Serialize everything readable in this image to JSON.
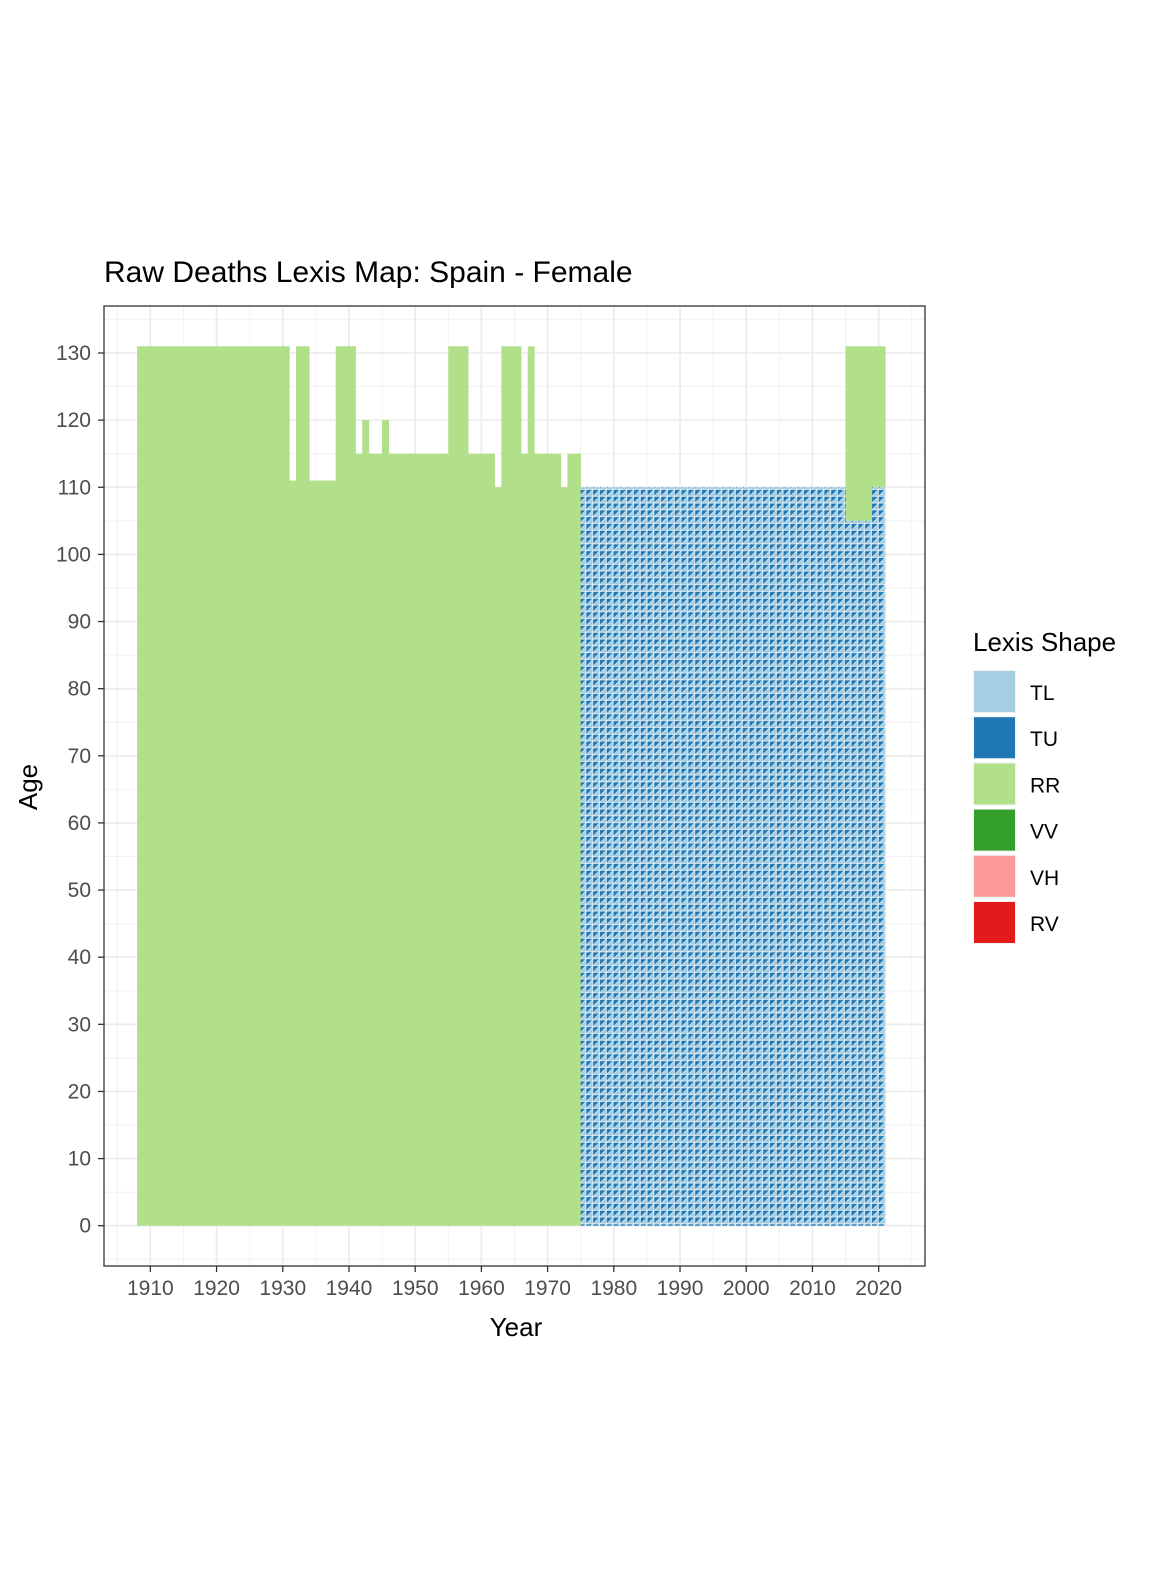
{
  "chart_data": {
    "type": "heatmap",
    "title": "Raw Deaths Lexis Map: Spain - Female",
    "xlabel": "Year",
    "ylabel": "Age",
    "xlim": [
      1903,
      2027
    ],
    "ylim": [
      -6,
      137
    ],
    "x_ticks": [
      1910,
      1920,
      1930,
      1940,
      1950,
      1960,
      1970,
      1980,
      1990,
      2000,
      2010,
      2020
    ],
    "y_ticks": [
      0,
      10,
      20,
      30,
      40,
      50,
      60,
      70,
      80,
      90,
      100,
      110,
      120,
      130
    ],
    "grid": true,
    "legend": {
      "title": "Lexis Shape",
      "position": "right",
      "entries": [
        {
          "label": "TL",
          "color": "#a6cee3"
        },
        {
          "label": "TU",
          "color": "#1f78b4"
        },
        {
          "label": "RR",
          "color": "#b2df8a"
        },
        {
          "label": "VV",
          "color": "#33a02c"
        },
        {
          "label": "VH",
          "color": "#fb9a99"
        },
        {
          "label": "RV",
          "color": "#e31a1c"
        }
      ]
    },
    "regions": [
      {
        "shape": "RR",
        "years": [
          1908,
          1931
        ],
        "ages": [
          0,
          131
        ]
      },
      {
        "shape": "RR",
        "years": [
          1931,
          1932
        ],
        "ages": [
          0,
          111
        ]
      },
      {
        "shape": "RR",
        "years": [
          1932,
          1934
        ],
        "ages": [
          0,
          131
        ]
      },
      {
        "shape": "RR",
        "years": [
          1934,
          1938
        ],
        "ages": [
          0,
          111
        ]
      },
      {
        "shape": "RR",
        "years": [
          1938,
          1941
        ],
        "ages": [
          0,
          131
        ]
      },
      {
        "shape": "RR",
        "years": [
          1941,
          1942
        ],
        "ages": [
          0,
          115
        ]
      },
      {
        "shape": "RR",
        "years": [
          1942,
          1943
        ],
        "ages": [
          0,
          120
        ]
      },
      {
        "shape": "RR",
        "years": [
          1943,
          1945
        ],
        "ages": [
          0,
          115
        ]
      },
      {
        "shape": "RR",
        "years": [
          1945,
          1946
        ],
        "ages": [
          0,
          120
        ]
      },
      {
        "shape": "RR",
        "years": [
          1946,
          1955
        ],
        "ages": [
          0,
          115
        ]
      },
      {
        "shape": "RR",
        "years": [
          1955,
          1958
        ],
        "ages": [
          0,
          131
        ]
      },
      {
        "shape": "RR",
        "years": [
          1958,
          1962
        ],
        "ages": [
          0,
          115
        ]
      },
      {
        "shape": "RR",
        "years": [
          1962,
          1963
        ],
        "ages": [
          0,
          110
        ]
      },
      {
        "shape": "RR",
        "years": [
          1963,
          1966
        ],
        "ages": [
          0,
          131
        ]
      },
      {
        "shape": "RR",
        "years": [
          1966,
          1967
        ],
        "ages": [
          0,
          115
        ]
      },
      {
        "shape": "RR",
        "years": [
          1967,
          1968
        ],
        "ages": [
          0,
          131
        ]
      },
      {
        "shape": "RR",
        "years": [
          1968,
          1972
        ],
        "ages": [
          0,
          115
        ]
      },
      {
        "shape": "RR",
        "years": [
          1972,
          1973
        ],
        "ages": [
          0,
          110
        ]
      },
      {
        "shape": "RR",
        "years": [
          1973,
          1975
        ],
        "ages": [
          0,
          115
        ]
      },
      {
        "shape": "TL+TU",
        "years": [
          1975,
          2015
        ],
        "ages": [
          0,
          110
        ]
      },
      {
        "shape": "RR",
        "years": [
          2015,
          2019
        ],
        "ages": [
          105,
          131
        ]
      },
      {
        "shape": "RR",
        "years": [
          2019,
          2021
        ],
        "ages": [
          110,
          131
        ]
      },
      {
        "shape": "TL+TU",
        "years": [
          2015,
          2019
        ],
        "ages": [
          0,
          105
        ]
      },
      {
        "shape": "TL+TU",
        "years": [
          2019,
          2021
        ],
        "ages": [
          0,
          110
        ]
      }
    ]
  }
}
